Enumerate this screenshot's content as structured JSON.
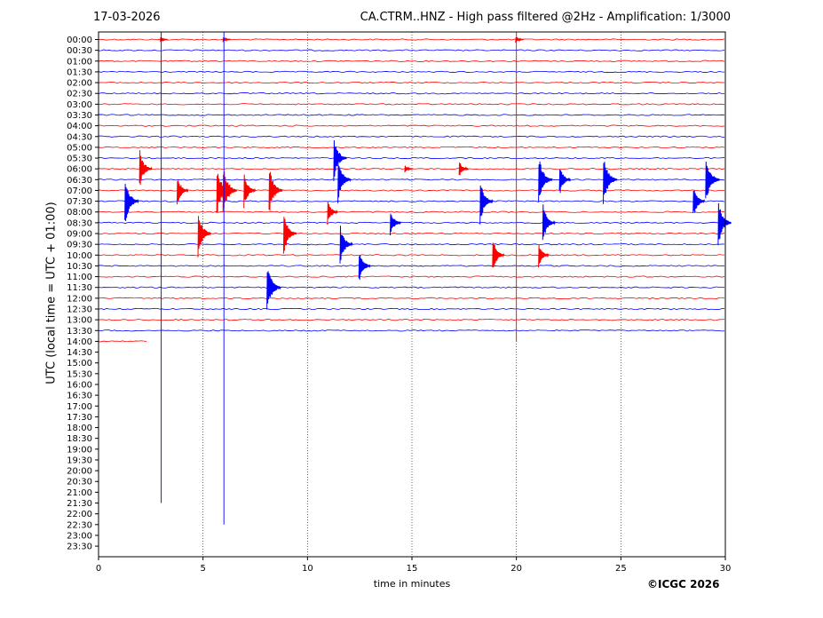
{
  "header": {
    "date": "17-03-2026",
    "title": "CA.CTRM..HNZ - High pass filtered @2Hz - Amplification: 1/3000"
  },
  "footer": {
    "copyright": "©ICGC 2026"
  },
  "chart_data": {
    "type": "line",
    "title": "CA.CTRM..HNZ - High pass filtered @2Hz - Amplification: 1/3000",
    "xlabel": "time in minutes",
    "ylabel": "UTC (local time = UTC + 01:00)",
    "xlim": [
      0,
      30
    ],
    "x_ticks": [
      0,
      5,
      10,
      15,
      20,
      25,
      30
    ],
    "y_ticks": [
      "00:00",
      "00:30",
      "01:00",
      "01:30",
      "02:00",
      "02:30",
      "03:00",
      "03:30",
      "04:00",
      "04:30",
      "05:00",
      "05:30",
      "06:00",
      "06:30",
      "07:00",
      "07:30",
      "08:00",
      "08:30",
      "09:00",
      "09:30",
      "10:00",
      "10:30",
      "11:00",
      "11:30",
      "12:00",
      "12:30",
      "13:00",
      "13:30",
      "14:00",
      "14:30",
      "15:00",
      "15:30",
      "16:00",
      "16:30",
      "17:00",
      "17:30",
      "18:00",
      "18:30",
      "19:00",
      "19:30",
      "20:00",
      "20:30",
      "21:00",
      "21:30",
      "22:00",
      "22:30",
      "23:00",
      "23:30"
    ],
    "grid": "vertical dotted at x ticks",
    "series_colors": {
      "even_rows": "#ff0000",
      "odd_rows": "#0000ff"
    },
    "trace_end": {
      "row": "14:00",
      "minute": 2.3
    },
    "events": [
      {
        "row": "00:00",
        "minute": 3.0,
        "amp": 0.3
      },
      {
        "row": "00:00",
        "minute": 6.0,
        "amp": 0.3
      },
      {
        "row": "00:00",
        "minute": 20.0,
        "amp": 0.4
      },
      {
        "row": "05:30",
        "minute": 11.3,
        "amp": 2.2
      },
      {
        "row": "06:00",
        "minute": 2.0,
        "amp": 2.0
      },
      {
        "row": "06:00",
        "minute": 14.7,
        "amp": 0.4
      },
      {
        "row": "06:00",
        "minute": 17.3,
        "amp": 0.9
      },
      {
        "row": "06:30",
        "minute": 11.5,
        "amp": 2.3
      },
      {
        "row": "06:30",
        "minute": 21.1,
        "amp": 2.5
      },
      {
        "row": "06:30",
        "minute": 22.1,
        "amp": 1.6
      },
      {
        "row": "06:30",
        "minute": 24.2,
        "amp": 2.6
      },
      {
        "row": "06:30",
        "minute": 29.1,
        "amp": 2.5
      },
      {
        "row": "07:00",
        "minute": 3.8,
        "amp": 1.6
      },
      {
        "row": "07:00",
        "minute": 5.7,
        "amp": 2.5
      },
      {
        "row": "07:00",
        "minute": 6.0,
        "amp": 2.6
      },
      {
        "row": "07:00",
        "minute": 7.0,
        "amp": 1.8
      },
      {
        "row": "07:00",
        "minute": 8.2,
        "amp": 2.4
      },
      {
        "row": "07:30",
        "minute": 1.3,
        "amp": 2.5
      },
      {
        "row": "07:30",
        "minute": 18.3,
        "amp": 2.2
      },
      {
        "row": "07:30",
        "minute": 28.5,
        "amp": 1.8
      },
      {
        "row": "08:00",
        "minute": 11.0,
        "amp": 1.3
      },
      {
        "row": "08:30",
        "minute": 14.0,
        "amp": 1.4
      },
      {
        "row": "08:30",
        "minute": 21.3,
        "amp": 2.0
      },
      {
        "row": "08:30",
        "minute": 29.7,
        "amp": 2.3
      },
      {
        "row": "09:00",
        "minute": 4.8,
        "amp": 2.3
      },
      {
        "row": "09:00",
        "minute": 8.9,
        "amp": 2.2
      },
      {
        "row": "09:30",
        "minute": 11.6,
        "amp": 2.0
      },
      {
        "row": "10:00",
        "minute": 18.9,
        "amp": 1.8
      },
      {
        "row": "10:00",
        "minute": 21.1,
        "amp": 1.3
      },
      {
        "row": "10:30",
        "minute": 12.5,
        "amp": 1.7
      },
      {
        "row": "11:30",
        "minute": 8.1,
        "amp": 2.5
      }
    ],
    "vertical_spikes": [
      {
        "minute": 3.0,
        "from_row": "00:00",
        "to_row": "21:30",
        "color": "#0000ff"
      },
      {
        "minute": 6.0,
        "from_row": "00:00",
        "to_row": "22:30",
        "color": "#0000ff"
      },
      {
        "minute": 20.0,
        "from_row": "00:00",
        "to_row": "14:00",
        "color": "#ff0000"
      }
    ]
  }
}
